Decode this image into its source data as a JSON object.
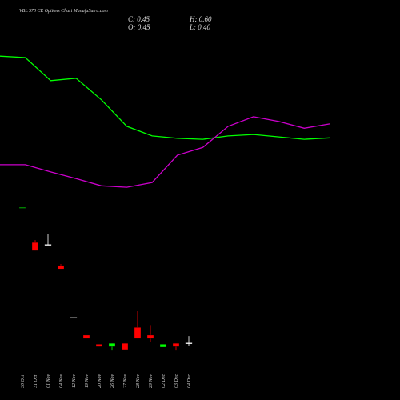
{
  "chart_data": {
    "type": "candlestick",
    "title": "VBL 570 CE Options Chart MunafaSutra.com",
    "ohlc_labels": [
      "C: 0.45",
      "H: 0.60",
      "O: 0.45",
      "L: 0.40"
    ],
    "categories": [
      "30 Oct",
      "31 Oct",
      "01 Nov",
      "04 Nov",
      "12 Nov",
      "19 Nov",
      "20 Nov",
      "26 Nov",
      "27 Nov",
      "28 Nov",
      "29 Nov",
      "02 Dec",
      "03 Dec",
      "04 Dec"
    ],
    "open": [
      3.27,
      2.55,
      2.5,
      2.07,
      0.98,
      0.62,
      0.43,
      0.38,
      0.45,
      0.78,
      0.62,
      0.37,
      0.45,
      0.45
    ],
    "high": [
      3.27,
      2.6,
      2.72,
      2.1,
      0.98,
      0.62,
      0.43,
      0.45,
      0.45,
      1.12,
      0.83,
      0.43,
      0.45,
      0.6
    ],
    "low": [
      3.27,
      2.38,
      2.5,
      2.0,
      0.98,
      0.55,
      0.38,
      0.3,
      0.32,
      0.55,
      0.47,
      0.37,
      0.3,
      0.4
    ],
    "close": [
      3.27,
      2.38,
      2.5,
      2.0,
      0.98,
      0.55,
      0.38,
      0.45,
      0.32,
      0.55,
      0.55,
      0.43,
      0.38,
      0.45
    ],
    "colors": [
      "#00ff00",
      "#ff0000",
      "#ffffff",
      "#ff0000",
      "#ffffff",
      "#ff0000",
      "#ff0000",
      "#00ff00",
      "#ff0000",
      "#ff0000",
      "#ff0000",
      "#00ff00",
      "#ff0000",
      "#ffffff"
    ],
    "lines": [
      {
        "color": "#00ff00",
        "values": [
          6.43,
          6.4,
          5.92,
          5.97,
          5.52,
          4.97,
          4.77,
          4.72,
          4.7,
          4.77,
          4.8,
          4.75,
          4.7,
          4.73
        ]
      },
      {
        "color": "#cc00cc",
        "values": [
          4.17,
          4.17,
          4.02,
          3.88,
          3.73,
          3.7,
          3.8,
          4.37,
          4.53,
          4.97,
          5.17,
          5.07,
          4.93,
          5.02
        ]
      }
    ],
    "ylim": [
      -0.73,
      7.6
    ]
  }
}
